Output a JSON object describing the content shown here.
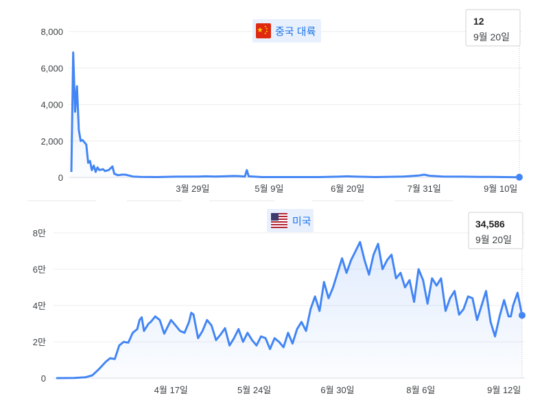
{
  "chart_data": [
    {
      "type": "area",
      "legend": {
        "label": "중국 대륙",
        "flag": "china-flag-icon",
        "placement": "top-center"
      },
      "y_ticks": [
        "8,000",
        "6,000",
        "4,000",
        "2,000",
        "0"
      ],
      "y_tick_values": [
        8000,
        6000,
        4000,
        2000,
        0
      ],
      "ylim": [
        0,
        8000
      ],
      "x_ticks": [
        "3월 29일",
        "5월 9일",
        "6월 20일",
        "7월 31일",
        "9월 10일"
      ],
      "x_tick_values": [
        "2020-03-29",
        "2020-05-09",
        "2020-06-20",
        "2020-07-31",
        "2020-09-10"
      ],
      "xlim": [
        "2020-01-24",
        "2020-09-20"
      ],
      "tooltip": {
        "value": "12",
        "date": "9월 20일"
      },
      "grid": true,
      "line_color": "#4285f4",
      "series": [
        {
          "points": [
            [
              "2020-01-24",
              300
            ],
            [
              "2020-01-25",
              6850
            ],
            [
              "2020-01-26",
              3600
            ],
            [
              "2020-01-27",
              5000
            ],
            [
              "2020-01-28",
              2600
            ],
            [
              "2020-01-29",
              2000
            ],
            [
              "2020-01-30",
              2050
            ],
            [
              "2020-02-01",
              1800
            ],
            [
              "2020-02-02",
              800
            ],
            [
              "2020-02-03",
              900
            ],
            [
              "2020-02-04",
              400
            ],
            [
              "2020-02-05",
              650
            ],
            [
              "2020-02-06",
              300
            ],
            [
              "2020-02-07",
              550
            ],
            [
              "2020-02-08",
              400
            ],
            [
              "2020-02-10",
              450
            ],
            [
              "2020-02-11",
              350
            ],
            [
              "2020-02-13",
              400
            ],
            [
              "2020-02-15",
              600
            ],
            [
              "2020-02-16",
              200
            ],
            [
              "2020-02-18",
              120
            ],
            [
              "2020-02-20",
              150
            ],
            [
              "2020-02-22",
              150
            ],
            [
              "2020-02-24",
              100
            ],
            [
              "2020-02-26",
              50
            ],
            [
              "2020-03-01",
              30
            ],
            [
              "2020-03-10",
              20
            ],
            [
              "2020-03-20",
              40
            ],
            [
              "2020-04-01",
              50
            ],
            [
              "2020-04-05",
              60
            ],
            [
              "2020-04-10",
              50
            ],
            [
              "2020-04-15",
              60
            ],
            [
              "2020-04-20",
              80
            ],
            [
              "2020-04-23",
              70
            ],
            [
              "2020-04-26",
              50
            ],
            [
              "2020-04-27",
              400
            ],
            [
              "2020-04-28",
              60
            ],
            [
              "2020-05-05",
              20
            ],
            [
              "2020-05-20",
              20
            ],
            [
              "2020-06-05",
              20
            ],
            [
              "2020-06-15",
              40
            ],
            [
              "2020-06-20",
              60
            ],
            [
              "2020-06-25",
              40
            ],
            [
              "2020-07-05",
              20
            ],
            [
              "2020-07-20",
              50
            ],
            [
              "2020-07-28",
              100
            ],
            [
              "2020-07-31",
              150
            ],
            [
              "2020-08-03",
              90
            ],
            [
              "2020-08-10",
              50
            ],
            [
              "2020-08-20",
              40
            ],
            [
              "2020-08-30",
              30
            ],
            [
              "2020-09-05",
              25
            ],
            [
              "2020-09-12",
              20
            ],
            [
              "2020-09-20",
              12
            ]
          ]
        }
      ]
    },
    {
      "type": "area",
      "legend": {
        "label": "미국",
        "flag": "us-flag-icon",
        "placement": "top-center"
      },
      "y_ticks": [
        "8만",
        "6만",
        "4만",
        "2만",
        "0"
      ],
      "y_tick_values": [
        80000,
        60000,
        40000,
        20000,
        0
      ],
      "ylim": [
        0,
        80000
      ],
      "x_ticks": [
        "4월 17일",
        "5월 24일",
        "6월 30일",
        "8월 6일",
        "9월 12일"
      ],
      "x_tick_values": [
        "2020-04-17",
        "2020-05-24",
        "2020-06-30",
        "2020-08-06",
        "2020-09-12"
      ],
      "xlim": [
        "2020-02-26",
        "2020-09-20"
      ],
      "tooltip": {
        "value": "34,586",
        "date": "9월 20일"
      },
      "grid": true,
      "line_color": "#4285f4",
      "series": [
        {
          "points": [
            [
              "2020-02-26",
              0
            ],
            [
              "2020-03-05",
              100
            ],
            [
              "2020-03-10",
              500
            ],
            [
              "2020-03-13",
              1500
            ],
            [
              "2020-03-16",
              5000
            ],
            [
              "2020-03-19",
              9000
            ],
            [
              "2020-03-21",
              11000
            ],
            [
              "2020-03-23",
              10500
            ],
            [
              "2020-03-25",
              18000
            ],
            [
              "2020-03-27",
              20000
            ],
            [
              "2020-03-29",
              19500
            ],
            [
              "2020-03-31",
              25000
            ],
            [
              "2020-04-02",
              27000
            ],
            [
              "2020-04-03",
              32000
            ],
            [
              "2020-04-04",
              33500
            ],
            [
              "2020-04-05",
              26000
            ],
            [
              "2020-04-07",
              30000
            ],
            [
              "2020-04-08",
              31000
            ],
            [
              "2020-04-10",
              34000
            ],
            [
              "2020-04-12",
              32000
            ],
            [
              "2020-04-14",
              24500
            ],
            [
              "2020-04-17",
              32000
            ],
            [
              "2020-04-19",
              29000
            ],
            [
              "2020-04-21",
              26000
            ],
            [
              "2020-04-23",
              25000
            ],
            [
              "2020-04-25",
              31000
            ],
            [
              "2020-04-26",
              36000
            ],
            [
              "2020-04-27",
              35000
            ],
            [
              "2020-04-29",
              22000
            ],
            [
              "2020-05-01",
              26000
            ],
            [
              "2020-05-03",
              32000
            ],
            [
              "2020-05-05",
              29000
            ],
            [
              "2020-05-07",
              21000
            ],
            [
              "2020-05-09",
              24000
            ],
            [
              "2020-05-11",
              27500
            ],
            [
              "2020-05-13",
              18000
            ],
            [
              "2020-05-15",
              22000
            ],
            [
              "2020-05-17",
              27000
            ],
            [
              "2020-05-19",
              20000
            ],
            [
              "2020-05-21",
              25000
            ],
            [
              "2020-05-23",
              21000
            ],
            [
              "2020-05-25",
              18000
            ],
            [
              "2020-05-27",
              23000
            ],
            [
              "2020-05-29",
              22000
            ],
            [
              "2020-05-31",
              16000
            ],
            [
              "2020-06-02",
              22000
            ],
            [
              "2020-06-04",
              20000
            ],
            [
              "2020-06-06",
              17000
            ],
            [
              "2020-06-08",
              25000
            ],
            [
              "2020-06-10",
              19000
            ],
            [
              "2020-06-12",
              27000
            ],
            [
              "2020-06-14",
              31000
            ],
            [
              "2020-06-16",
              26000
            ],
            [
              "2020-06-18",
              38000
            ],
            [
              "2020-06-20",
              45000
            ],
            [
              "2020-06-22",
              37000
            ],
            [
              "2020-06-24",
              53000
            ],
            [
              "2020-06-26",
              44000
            ],
            [
              "2020-06-28",
              50000
            ],
            [
              "2020-06-30",
              58000
            ],
            [
              "2020-07-02",
              66000
            ],
            [
              "2020-07-04",
              58000
            ],
            [
              "2020-07-06",
              65000
            ],
            [
              "2020-07-08",
              70000
            ],
            [
              "2020-07-10",
              75000
            ],
            [
              "2020-07-12",
              65000
            ],
            [
              "2020-07-14",
              57000
            ],
            [
              "2020-07-16",
              68000
            ],
            [
              "2020-07-18",
              74000
            ],
            [
              "2020-07-20",
              60000
            ],
            [
              "2020-07-22",
              65000
            ],
            [
              "2020-07-24",
              68000
            ],
            [
              "2020-07-26",
              55000
            ],
            [
              "2020-07-28",
              58000
            ],
            [
              "2020-07-30",
              50000
            ],
            [
              "2020-08-01",
              54000
            ],
            [
              "2020-08-03",
              42000
            ],
            [
              "2020-08-05",
              60000
            ],
            [
              "2020-08-07",
              54000
            ],
            [
              "2020-08-09",
              41000
            ],
            [
              "2020-08-11",
              55000
            ],
            [
              "2020-08-13",
              51000
            ],
            [
              "2020-08-15",
              55000
            ],
            [
              "2020-08-17",
              37000
            ],
            [
              "2020-08-19",
              44000
            ],
            [
              "2020-08-21",
              48000
            ],
            [
              "2020-08-23",
              35000
            ],
            [
              "2020-08-25",
              38000
            ],
            [
              "2020-08-27",
              45000
            ],
            [
              "2020-08-29",
              44000
            ],
            [
              "2020-08-31",
              32000
            ],
            [
              "2020-09-02",
              40000
            ],
            [
              "2020-09-04",
              48000
            ],
            [
              "2020-09-06",
              31000
            ],
            [
              "2020-09-08",
              23000
            ],
            [
              "2020-09-10",
              34000
            ],
            [
              "2020-09-12",
              43000
            ],
            [
              "2020-09-14",
              34000
            ],
            [
              "2020-09-15",
              34000
            ],
            [
              "2020-09-16",
              40000
            ],
            [
              "2020-09-18",
              47000
            ],
            [
              "2020-09-20",
              34586
            ]
          ]
        }
      ]
    }
  ]
}
